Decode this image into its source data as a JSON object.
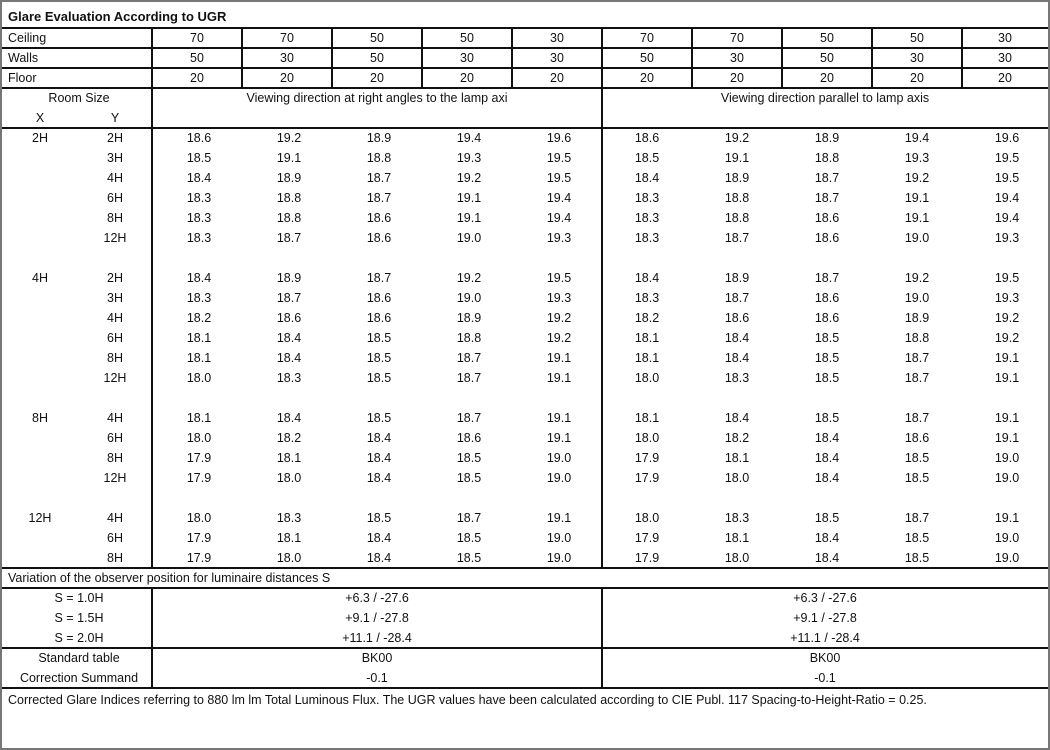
{
  "title": "Glare Evaluation According to UGR",
  "reflectances": [
    {
      "label": "Ceiling",
      "values": [
        "70",
        "70",
        "50",
        "50",
        "30",
        "70",
        "70",
        "50",
        "50",
        "30"
      ]
    },
    {
      "label": "Walls",
      "values": [
        "50",
        "30",
        "50",
        "30",
        "30",
        "50",
        "30",
        "50",
        "30",
        "30"
      ]
    },
    {
      "label": "Floor",
      "values": [
        "20",
        "20",
        "20",
        "20",
        "20",
        "20",
        "20",
        "20",
        "20",
        "20"
      ]
    }
  ],
  "header": {
    "room_size": "Room Size",
    "x": "X",
    "y": "Y",
    "view_right_angles": "Viewing direction at right angles to the lamp axi",
    "view_parallel": "Viewing direction parallel to lamp axis"
  },
  "groups": [
    {
      "x": "2H",
      "rows": [
        {
          "y": "2H",
          "values": [
            "18.6",
            "19.2",
            "18.9",
            "19.4",
            "19.6",
            "18.6",
            "19.2",
            "18.9",
            "19.4",
            "19.6"
          ]
        },
        {
          "y": "3H",
          "values": [
            "18.5",
            "19.1",
            "18.8",
            "19.3",
            "19.5",
            "18.5",
            "19.1",
            "18.8",
            "19.3",
            "19.5"
          ]
        },
        {
          "y": "4H",
          "values": [
            "18.4",
            "18.9",
            "18.7",
            "19.2",
            "19.5",
            "18.4",
            "18.9",
            "18.7",
            "19.2",
            "19.5"
          ]
        },
        {
          "y": "6H",
          "values": [
            "18.3",
            "18.8",
            "18.7",
            "19.1",
            "19.4",
            "18.3",
            "18.8",
            "18.7",
            "19.1",
            "19.4"
          ]
        },
        {
          "y": "8H",
          "values": [
            "18.3",
            "18.8",
            "18.6",
            "19.1",
            "19.4",
            "18.3",
            "18.8",
            "18.6",
            "19.1",
            "19.4"
          ]
        },
        {
          "y": "12H",
          "values": [
            "18.3",
            "18.7",
            "18.6",
            "19.0",
            "19.3",
            "18.3",
            "18.7",
            "18.6",
            "19.0",
            "19.3"
          ]
        }
      ]
    },
    {
      "x": "4H",
      "rows": [
        {
          "y": "2H",
          "values": [
            "18.4",
            "18.9",
            "18.7",
            "19.2",
            "19.5",
            "18.4",
            "18.9",
            "18.7",
            "19.2",
            "19.5"
          ]
        },
        {
          "y": "3H",
          "values": [
            "18.3",
            "18.7",
            "18.6",
            "19.0",
            "19.3",
            "18.3",
            "18.7",
            "18.6",
            "19.0",
            "19.3"
          ]
        },
        {
          "y": "4H",
          "values": [
            "18.2",
            "18.6",
            "18.6",
            "18.9",
            "19.2",
            "18.2",
            "18.6",
            "18.6",
            "18.9",
            "19.2"
          ]
        },
        {
          "y": "6H",
          "values": [
            "18.1",
            "18.4",
            "18.5",
            "18.8",
            "19.2",
            "18.1",
            "18.4",
            "18.5",
            "18.8",
            "19.2"
          ]
        },
        {
          "y": "8H",
          "values": [
            "18.1",
            "18.4",
            "18.5",
            "18.7",
            "19.1",
            "18.1",
            "18.4",
            "18.5",
            "18.7",
            "19.1"
          ]
        },
        {
          "y": "12H",
          "values": [
            "18.0",
            "18.3",
            "18.5",
            "18.7",
            "19.1",
            "18.0",
            "18.3",
            "18.5",
            "18.7",
            "19.1"
          ]
        }
      ]
    },
    {
      "x": "8H",
      "rows": [
        {
          "y": "4H",
          "values": [
            "18.1",
            "18.4",
            "18.5",
            "18.7",
            "19.1",
            "18.1",
            "18.4",
            "18.5",
            "18.7",
            "19.1"
          ]
        },
        {
          "y": "6H",
          "values": [
            "18.0",
            "18.2",
            "18.4",
            "18.6",
            "19.1",
            "18.0",
            "18.2",
            "18.4",
            "18.6",
            "19.1"
          ]
        },
        {
          "y": "8H",
          "values": [
            "17.9",
            "18.1",
            "18.4",
            "18.5",
            "19.0",
            "17.9",
            "18.1",
            "18.4",
            "18.5",
            "19.0"
          ]
        },
        {
          "y": "12H",
          "values": [
            "17.9",
            "18.0",
            "18.4",
            "18.5",
            "19.0",
            "17.9",
            "18.0",
            "18.4",
            "18.5",
            "19.0"
          ]
        }
      ]
    },
    {
      "x": "12H",
      "rows": [
        {
          "y": "4H",
          "values": [
            "18.0",
            "18.3",
            "18.5",
            "18.7",
            "19.1",
            "18.0",
            "18.3",
            "18.5",
            "18.7",
            "19.1"
          ]
        },
        {
          "y": "6H",
          "values": [
            "17.9",
            "18.1",
            "18.4",
            "18.5",
            "19.0",
            "17.9",
            "18.1",
            "18.4",
            "18.5",
            "19.0"
          ]
        },
        {
          "y": "8H",
          "values": [
            "17.9",
            "18.0",
            "18.4",
            "18.5",
            "19.0",
            "17.9",
            "18.0",
            "18.4",
            "18.5",
            "19.0"
          ]
        }
      ]
    }
  ],
  "variation": {
    "title": "Variation of the observer position for luminaire distances S",
    "rows": [
      {
        "label": "S = 1.0H",
        "right_angles": "+6.3 / -27.6",
        "parallel": "+6.3 / -27.6"
      },
      {
        "label": "S = 1.5H",
        "right_angles": "+9.1 / -27.8",
        "parallel": "+9.1 / -27.8"
      },
      {
        "label": "S = 2.0H",
        "right_angles": "+11.1 / -28.4",
        "parallel": "+11.1 / -28.4"
      }
    ]
  },
  "standard": [
    {
      "label": "Standard table",
      "right_angles": "BK00",
      "parallel": "BK00"
    },
    {
      "label": "Correction Summand",
      "right_angles": "-0.1",
      "parallel": "-0.1"
    }
  ],
  "footer": "Corrected Glare Indices referring to 880 lm lm Total Luminous Flux. The UGR values have been calculated according to CIE Publ. 117    Spacing-to-Height-Ratio = 0.25."
}
